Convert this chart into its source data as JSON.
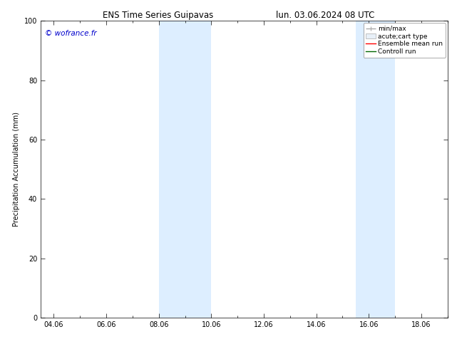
{
  "title_left": "ENS Time Series Guipavas",
  "title_right": "lun. 03.06.2024 08 UTC",
  "ylabel": "Precipitation Accumulation (mm)",
  "watermark": "© wofrance.fr",
  "watermark_color": "#0000cc",
  "ylim": [
    0,
    100
  ],
  "xlim_start": 3.5,
  "xlim_end": 19.0,
  "xtick_positions": [
    4,
    6,
    8,
    10,
    12,
    14,
    16,
    18
  ],
  "xtick_labels": [
    "04.06",
    "06.06",
    "08.06",
    "10.06",
    "12.06",
    "14.06",
    "16.06",
    "18.06"
  ],
  "ytick_positions": [
    0,
    20,
    40,
    60,
    80,
    100
  ],
  "shaded_bands": [
    {
      "xmin": 8.0,
      "xmax": 10.0
    },
    {
      "xmin": 15.5,
      "xmax": 17.0
    }
  ],
  "shaded_color": "#ddeeff",
  "background_color": "#ffffff",
  "plot_bg_color": "#ffffff",
  "legend_entries": [
    {
      "label": "min/max",
      "color": "#aaaaaa",
      "lw": 1.0,
      "style": "minmax"
    },
    {
      "label": "acute;cart type",
      "color": "#cccccc",
      "lw": 5,
      "style": "box"
    },
    {
      "label": "Ensemble mean run",
      "color": "#ff0000",
      "lw": 1.0,
      "style": "line"
    },
    {
      "label": "Controll run",
      "color": "#006600",
      "lw": 1.0,
      "style": "line"
    }
  ],
  "title_fontsize": 8.5,
  "tick_fontsize": 7,
  "ylabel_fontsize": 7,
  "watermark_fontsize": 7.5,
  "legend_fontsize": 6.5
}
